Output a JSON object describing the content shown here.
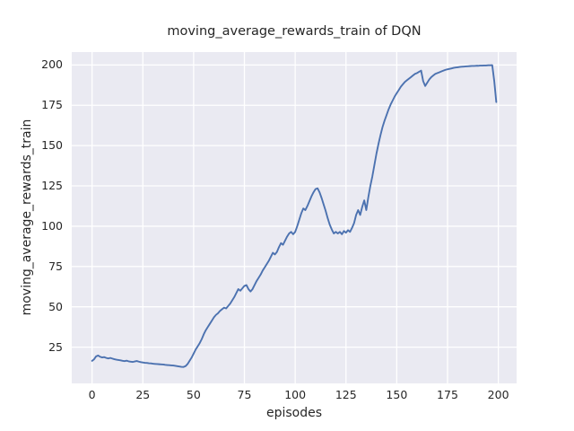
{
  "figure": {
    "title": "moving_average_rewards_train of DQN",
    "xlabel": "episodes",
    "ylabel": "moving_average_rewards_train"
  },
  "chart_data": {
    "type": "line",
    "title": "moving_average_rewards_train of DQN",
    "xlabel": "episodes",
    "ylabel": "moving_average_rewards_train",
    "xlim": [
      -10,
      209
    ],
    "ylim": [
      2.5,
      208
    ],
    "xticks": [
      0,
      25,
      50,
      75,
      100,
      125,
      150,
      175,
      200
    ],
    "yticks": [
      25,
      50,
      75,
      100,
      125,
      150,
      175,
      200
    ],
    "grid": true,
    "legend": false,
    "colors": {
      "figure_bg": "#ffffff",
      "axes_bg": "#eaeaf2",
      "grid": "#ffffff",
      "line": "#4c72b0",
      "text": "#262626"
    },
    "series": [
      {
        "name": "moving_average_rewards_train",
        "x_start": 0,
        "x_step": 1,
        "y": [
          16.5,
          17.5,
          19.3,
          19.8,
          19.0,
          18.6,
          18.8,
          18.3,
          18.0,
          18.3,
          17.9,
          17.5,
          17.2,
          17.0,
          16.8,
          16.5,
          16.3,
          16.6,
          16.2,
          16.0,
          15.8,
          16.1,
          16.4,
          16.0,
          15.7,
          15.5,
          15.3,
          15.2,
          15.0,
          14.9,
          14.7,
          14.6,
          14.5,
          14.4,
          14.3,
          14.2,
          14.0,
          13.9,
          13.8,
          13.7,
          13.6,
          13.4,
          13.2,
          13.0,
          12.8,
          12.7,
          13.2,
          14.5,
          16.5,
          18.5,
          21.0,
          23.5,
          25.5,
          27.5,
          30.0,
          33.0,
          35.5,
          37.5,
          39.5,
          41.5,
          43.5,
          45.0,
          46.0,
          47.5,
          48.5,
          49.5,
          49.0,
          50.5,
          52.0,
          54.0,
          56.0,
          58.5,
          61.0,
          60.0,
          61.5,
          63.0,
          63.5,
          61.0,
          59.5,
          61.0,
          63.5,
          66.0,
          68.0,
          70.0,
          72.5,
          74.5,
          76.5,
          78.5,
          81.0,
          83.5,
          82.5,
          84.0,
          87.0,
          89.5,
          88.5,
          91.0,
          93.5,
          95.5,
          96.5,
          95.0,
          96.5,
          100.0,
          104.0,
          108.0,
          111.0,
          110.0,
          112.5,
          115.5,
          118.5,
          121.0,
          123.0,
          123.5,
          121.0,
          117.5,
          113.5,
          109.5,
          105.0,
          101.0,
          98.0,
          95.5,
          96.5,
          95.5,
          96.5,
          95.0,
          97.0,
          96.0,
          97.5,
          96.5,
          99.0,
          102.0,
          107.0,
          110.0,
          107.0,
          112.0,
          116.0,
          110.0,
          118.0,
          125.0,
          131.0,
          138.0,
          145.0,
          151.0,
          156.5,
          161.5,
          165.5,
          169.0,
          172.5,
          175.5,
          178.0,
          180.5,
          182.5,
          184.5,
          186.5,
          188.0,
          189.5,
          190.5,
          191.5,
          192.5,
          193.5,
          194.5,
          195.0,
          195.8,
          196.5,
          190.0,
          187.0,
          189.0,
          191.0,
          192.5,
          193.5,
          194.5,
          195.0,
          195.5,
          196.0,
          196.5,
          197.0,
          197.3,
          197.6,
          197.9,
          198.2,
          198.4,
          198.6,
          198.8,
          198.9,
          199.0,
          199.1,
          199.2,
          199.3,
          199.4,
          199.4,
          199.5,
          199.5,
          199.6,
          199.6,
          199.7,
          199.7,
          199.8,
          199.8,
          199.9,
          190.0,
          177.0
        ]
      }
    ]
  }
}
